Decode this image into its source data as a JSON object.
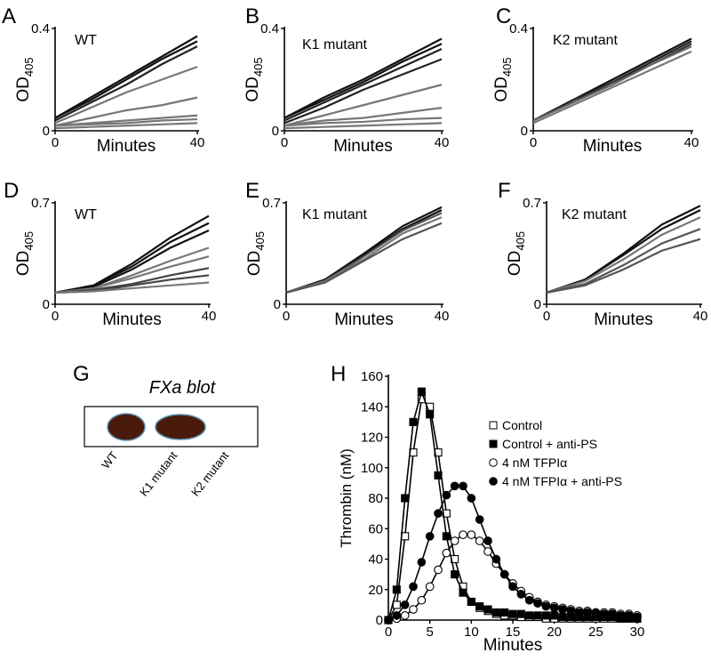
{
  "chart_data": [
    {
      "panel": "A",
      "type": "line",
      "annotation": "WT",
      "x_label": "Minutes",
      "y_label": "OD",
      "y_label_sub": "405",
      "x": [
        0,
        10,
        20,
        30,
        40
      ],
      "xlim": [
        0,
        40
      ],
      "xticks": [
        0,
        40
      ],
      "ylim": [
        0,
        0.4
      ],
      "yticks": [
        0,
        0.4
      ],
      "series": [
        {
          "color": "#111111",
          "values": [
            0.05,
            0.13,
            0.21,
            0.29,
            0.37
          ]
        },
        {
          "color": "#111111",
          "values": [
            0.05,
            0.12,
            0.2,
            0.28,
            0.35
          ]
        },
        {
          "color": "#222222",
          "values": [
            0.04,
            0.11,
            0.18,
            0.26,
            0.33
          ]
        },
        {
          "color": "#777777",
          "values": [
            0.03,
            0.09,
            0.15,
            0.2,
            0.25
          ]
        },
        {
          "color": "#777777",
          "values": [
            0.02,
            0.05,
            0.08,
            0.1,
            0.13
          ]
        },
        {
          "color": "#777777",
          "values": [
            0.02,
            0.03,
            0.04,
            0.05,
            0.06
          ]
        },
        {
          "color": "#777777",
          "values": [
            0.02,
            0.025,
            0.03,
            0.04,
            0.045
          ]
        },
        {
          "color": "#777777",
          "values": [
            0.01,
            0.015,
            0.02,
            0.025,
            0.03
          ]
        }
      ]
    },
    {
      "panel": "B",
      "type": "line",
      "annotation": "K1 mutant",
      "x_label": "Minutes",
      "y_label": "OD",
      "y_label_sub": "405",
      "x": [
        0,
        10,
        20,
        30,
        40
      ],
      "xlim": [
        0,
        40
      ],
      "xticks": [
        0,
        40
      ],
      "ylim": [
        0,
        0.4
      ],
      "yticks": [
        0,
        0.4
      ],
      "series": [
        {
          "color": "#111111",
          "values": [
            0.05,
            0.13,
            0.2,
            0.28,
            0.36
          ]
        },
        {
          "color": "#111111",
          "values": [
            0.05,
            0.12,
            0.19,
            0.27,
            0.34
          ]
        },
        {
          "color": "#222222",
          "values": [
            0.04,
            0.11,
            0.18,
            0.25,
            0.32
          ]
        },
        {
          "color": "#222222",
          "values": [
            0.03,
            0.09,
            0.16,
            0.22,
            0.28
          ]
        },
        {
          "color": "#777777",
          "values": [
            0.02,
            0.06,
            0.1,
            0.14,
            0.18
          ]
        },
        {
          "color": "#777777",
          "values": [
            0.02,
            0.04,
            0.05,
            0.07,
            0.09
          ]
        },
        {
          "color": "#777777",
          "values": [
            0.02,
            0.03,
            0.035,
            0.045,
            0.05
          ]
        },
        {
          "color": "#777777",
          "values": [
            0.01,
            0.015,
            0.02,
            0.025,
            0.03
          ]
        }
      ]
    },
    {
      "panel": "C",
      "type": "line",
      "annotation": "K2 mutant",
      "x_label": "Minutes",
      "y_label": "OD",
      "y_label_sub": "405",
      "x": [
        0,
        10,
        20,
        30,
        40
      ],
      "xlim": [
        0,
        40
      ],
      "xticks": [
        0,
        40
      ],
      "ylim": [
        0,
        0.4
      ],
      "yticks": [
        0,
        0.4
      ],
      "series": [
        {
          "color": "#111111",
          "values": [
            0.04,
            0.12,
            0.2,
            0.28,
            0.36
          ]
        },
        {
          "color": "#222222",
          "values": [
            0.04,
            0.12,
            0.19,
            0.27,
            0.35
          ]
        },
        {
          "color": "#333333",
          "values": [
            0.04,
            0.11,
            0.19,
            0.26,
            0.34
          ]
        },
        {
          "color": "#666666",
          "values": [
            0.04,
            0.11,
            0.18,
            0.26,
            0.33
          ]
        },
        {
          "color": "#777777",
          "values": [
            0.03,
            0.1,
            0.17,
            0.24,
            0.31
          ]
        }
      ]
    },
    {
      "panel": "D",
      "type": "line",
      "annotation": "WT",
      "x_label": "Minutes",
      "y_label": "OD",
      "y_label_sub": "405",
      "x": [
        0,
        10,
        20,
        30,
        40
      ],
      "xlim": [
        0,
        40
      ],
      "xticks": [
        0,
        40
      ],
      "ylim": [
        0,
        0.7
      ],
      "yticks": [
        0,
        0.7
      ],
      "series": [
        {
          "color": "#111111",
          "values": [
            0.08,
            0.13,
            0.28,
            0.46,
            0.61
          ]
        },
        {
          "color": "#111111",
          "values": [
            0.08,
            0.13,
            0.26,
            0.43,
            0.56
          ]
        },
        {
          "color": "#111111",
          "values": [
            0.08,
            0.12,
            0.24,
            0.39,
            0.51
          ]
        },
        {
          "color": "#777777",
          "values": [
            0.08,
            0.11,
            0.2,
            0.3,
            0.39
          ]
        },
        {
          "color": "#777777",
          "values": [
            0.08,
            0.11,
            0.18,
            0.26,
            0.33
          ]
        },
        {
          "color": "#444444",
          "values": [
            0.08,
            0.1,
            0.14,
            0.2,
            0.25
          ]
        },
        {
          "color": "#444444",
          "values": [
            0.08,
            0.09,
            0.13,
            0.17,
            0.2
          ]
        },
        {
          "color": "#777777",
          "values": [
            0.08,
            0.09,
            0.11,
            0.13,
            0.15
          ]
        }
      ]
    },
    {
      "panel": "E",
      "type": "line",
      "annotation": "K1 mutant",
      "x_label": "Minutes",
      "y_label": "OD",
      "y_label_sub": "405",
      "x": [
        0,
        10,
        20,
        30,
        40
      ],
      "xlim": [
        0,
        40
      ],
      "xticks": [
        0,
        40
      ],
      "ylim": [
        0,
        0.7
      ],
      "yticks": [
        0,
        0.7
      ],
      "series": [
        {
          "color": "#111111",
          "values": [
            0.08,
            0.17,
            0.35,
            0.54,
            0.67
          ]
        },
        {
          "color": "#111111",
          "values": [
            0.08,
            0.17,
            0.34,
            0.52,
            0.65
          ]
        },
        {
          "color": "#555555",
          "values": [
            0.08,
            0.16,
            0.33,
            0.51,
            0.63
          ]
        },
        {
          "color": "#777777",
          "values": [
            0.08,
            0.16,
            0.31,
            0.49,
            0.6
          ]
        },
        {
          "color": "#555555",
          "values": [
            0.08,
            0.15,
            0.3,
            0.45,
            0.56
          ]
        }
      ]
    },
    {
      "panel": "F",
      "type": "line",
      "annotation": "K2 mutant",
      "x_label": "Minutes",
      "y_label": "OD",
      "y_label_sub": "405",
      "x": [
        0,
        10,
        20,
        30,
        40
      ],
      "xlim": [
        0,
        40
      ],
      "xticks": [
        0,
        40
      ],
      "ylim": [
        0,
        0.7
      ],
      "yticks": [
        0,
        0.7
      ],
      "series": [
        {
          "color": "#111111",
          "values": [
            0.08,
            0.17,
            0.35,
            0.55,
            0.68
          ]
        },
        {
          "color": "#111111",
          "values": [
            0.08,
            0.17,
            0.34,
            0.52,
            0.65
          ]
        },
        {
          "color": "#777777",
          "values": [
            0.08,
            0.16,
            0.31,
            0.48,
            0.6
          ]
        },
        {
          "color": "#555555",
          "values": [
            0.08,
            0.14,
            0.27,
            0.42,
            0.52
          ]
        },
        {
          "color": "#555555",
          "values": [
            0.08,
            0.13,
            0.24,
            0.37,
            0.45
          ]
        }
      ]
    },
    {
      "panel": "H",
      "type": "marker-line",
      "x_label": "Minutes",
      "y_label": "Thrombin (nM)",
      "legend": "right",
      "x": [
        0,
        1,
        2,
        3,
        4,
        5,
        6,
        7,
        8,
        9,
        10,
        11,
        12,
        13,
        14,
        15,
        16,
        17,
        18,
        19,
        20,
        21,
        22,
        23,
        24,
        25,
        26,
        27,
        28,
        29,
        30
      ],
      "xlim": [
        0,
        30
      ],
      "xticks": [
        0,
        5,
        10,
        15,
        20,
        25,
        30
      ],
      "ylim": [
        0,
        160
      ],
      "yticks": [
        0,
        20,
        40,
        60,
        80,
        100,
        120,
        140,
        160
      ],
      "series": [
        {
          "name": "Control",
          "color": "#000000",
          "marker": "square",
          "filled": false,
          "values": [
            0,
            10,
            55,
            110,
            145,
            140,
            110,
            70,
            40,
            22,
            12,
            8,
            6,
            4,
            3,
            3,
            2,
            2,
            2,
            1,
            1,
            1,
            1,
            1,
            1,
            1,
            1,
            1,
            1,
            1,
            1
          ]
        },
        {
          "name": "Control + anti-PS",
          "color": "#000000",
          "marker": "square",
          "filled": true,
          "values": [
            0,
            20,
            80,
            130,
            150,
            135,
            95,
            55,
            30,
            18,
            12,
            9,
            7,
            5,
            5,
            4,
            4,
            3,
            3,
            3,
            3,
            2,
            2,
            2,
            2,
            2,
            2,
            2,
            1,
            1,
            1
          ]
        },
        {
          "name": "4 nM TFPIα",
          "color": "#000000",
          "marker": "circle",
          "filled": false,
          "values": [
            0,
            1,
            3,
            7,
            13,
            22,
            33,
            44,
            52,
            56,
            56,
            52,
            45,
            37,
            30,
            24,
            19,
            15,
            12,
            10,
            9,
            8,
            7,
            6,
            6,
            5,
            5,
            5,
            4,
            4,
            3
          ]
        },
        {
          "name": "4 nM TFPIα + anti-PS",
          "color": "#000000",
          "marker": "circle",
          "filled": true,
          "values": [
            0,
            3,
            10,
            22,
            38,
            55,
            70,
            82,
            88,
            88,
            80,
            66,
            52,
            40,
            30,
            22,
            17,
            13,
            11,
            9,
            8,
            7,
            6,
            5,
            5,
            5,
            4,
            4,
            3,
            3,
            2
          ]
        }
      ]
    }
  ],
  "blot": {
    "panel": "G",
    "title": "FXa blot",
    "lanes": [
      "WT",
      "K1 mutant",
      "K2 mutant"
    ]
  }
}
